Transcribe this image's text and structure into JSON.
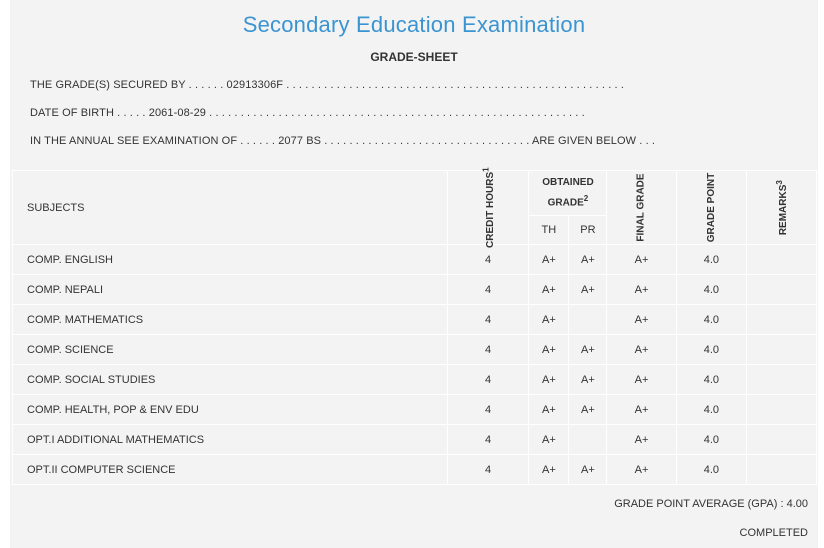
{
  "header": {
    "title": "Secondary Education Examination",
    "subtitle": "GRADE-SHEET"
  },
  "info": {
    "secured_by_label": "THE GRADE(S) SECURED BY",
    "symbol_no": "02913306F",
    "dob_label": "DATE OF BIRTH",
    "dob": "2061-08-29",
    "exam_label": "IN THE ANNUAL SEE EXAMINATION OF",
    "exam_year": "2077 BS",
    "given_below": "ARE GIVEN BELOW"
  },
  "table": {
    "headers": {
      "subjects": "SUBJECTS",
      "credit_hours": "CREDIT HOURS",
      "credit_sup": "1",
      "obtained_grade": "OBTAINED GRADE",
      "obtained_sup": "2",
      "th": "TH",
      "pr": "PR",
      "final_grade": "FINAL GRADE",
      "grade_point": "GRADE POINT",
      "remarks": "REMARKS",
      "remarks_sup": "3"
    },
    "rows": [
      {
        "subject": "COMP. ENGLISH",
        "credit": "4",
        "th": "A+",
        "pr": "A+",
        "final": "A+",
        "point": "4.0",
        "remarks": ""
      },
      {
        "subject": "COMP. NEPALI",
        "credit": "4",
        "th": "A+",
        "pr": "A+",
        "final": "A+",
        "point": "4.0",
        "remarks": ""
      },
      {
        "subject": "COMP. MATHEMATICS",
        "credit": "4",
        "th": "A+",
        "pr": "",
        "final": "A+",
        "point": "4.0",
        "remarks": ""
      },
      {
        "subject": "COMP. SCIENCE",
        "credit": "4",
        "th": "A+",
        "pr": "A+",
        "final": "A+",
        "point": "4.0",
        "remarks": ""
      },
      {
        "subject": "COMP. SOCIAL STUDIES",
        "credit": "4",
        "th": "A+",
        "pr": "A+",
        "final": "A+",
        "point": "4.0",
        "remarks": ""
      },
      {
        "subject": "COMP. HEALTH, POP & ENV EDU",
        "credit": "4",
        "th": "A+",
        "pr": "A+",
        "final": "A+",
        "point": "4.0",
        "remarks": ""
      },
      {
        "subject": "OPT.I ADDITIONAL MATHEMATICS",
        "credit": "4",
        "th": "A+",
        "pr": "",
        "final": "A+",
        "point": "4.0",
        "remarks": ""
      },
      {
        "subject": "OPT.II COMPUTER SCIENCE",
        "credit": "4",
        "th": "A+",
        "pr": "A+",
        "final": "A+",
        "point": "4.0",
        "remarks": ""
      }
    ]
  },
  "footer": {
    "gpa_label": "GRADE POINT AVERAGE (GPA) :",
    "gpa": "4.00",
    "status": "COMPLETED"
  }
}
